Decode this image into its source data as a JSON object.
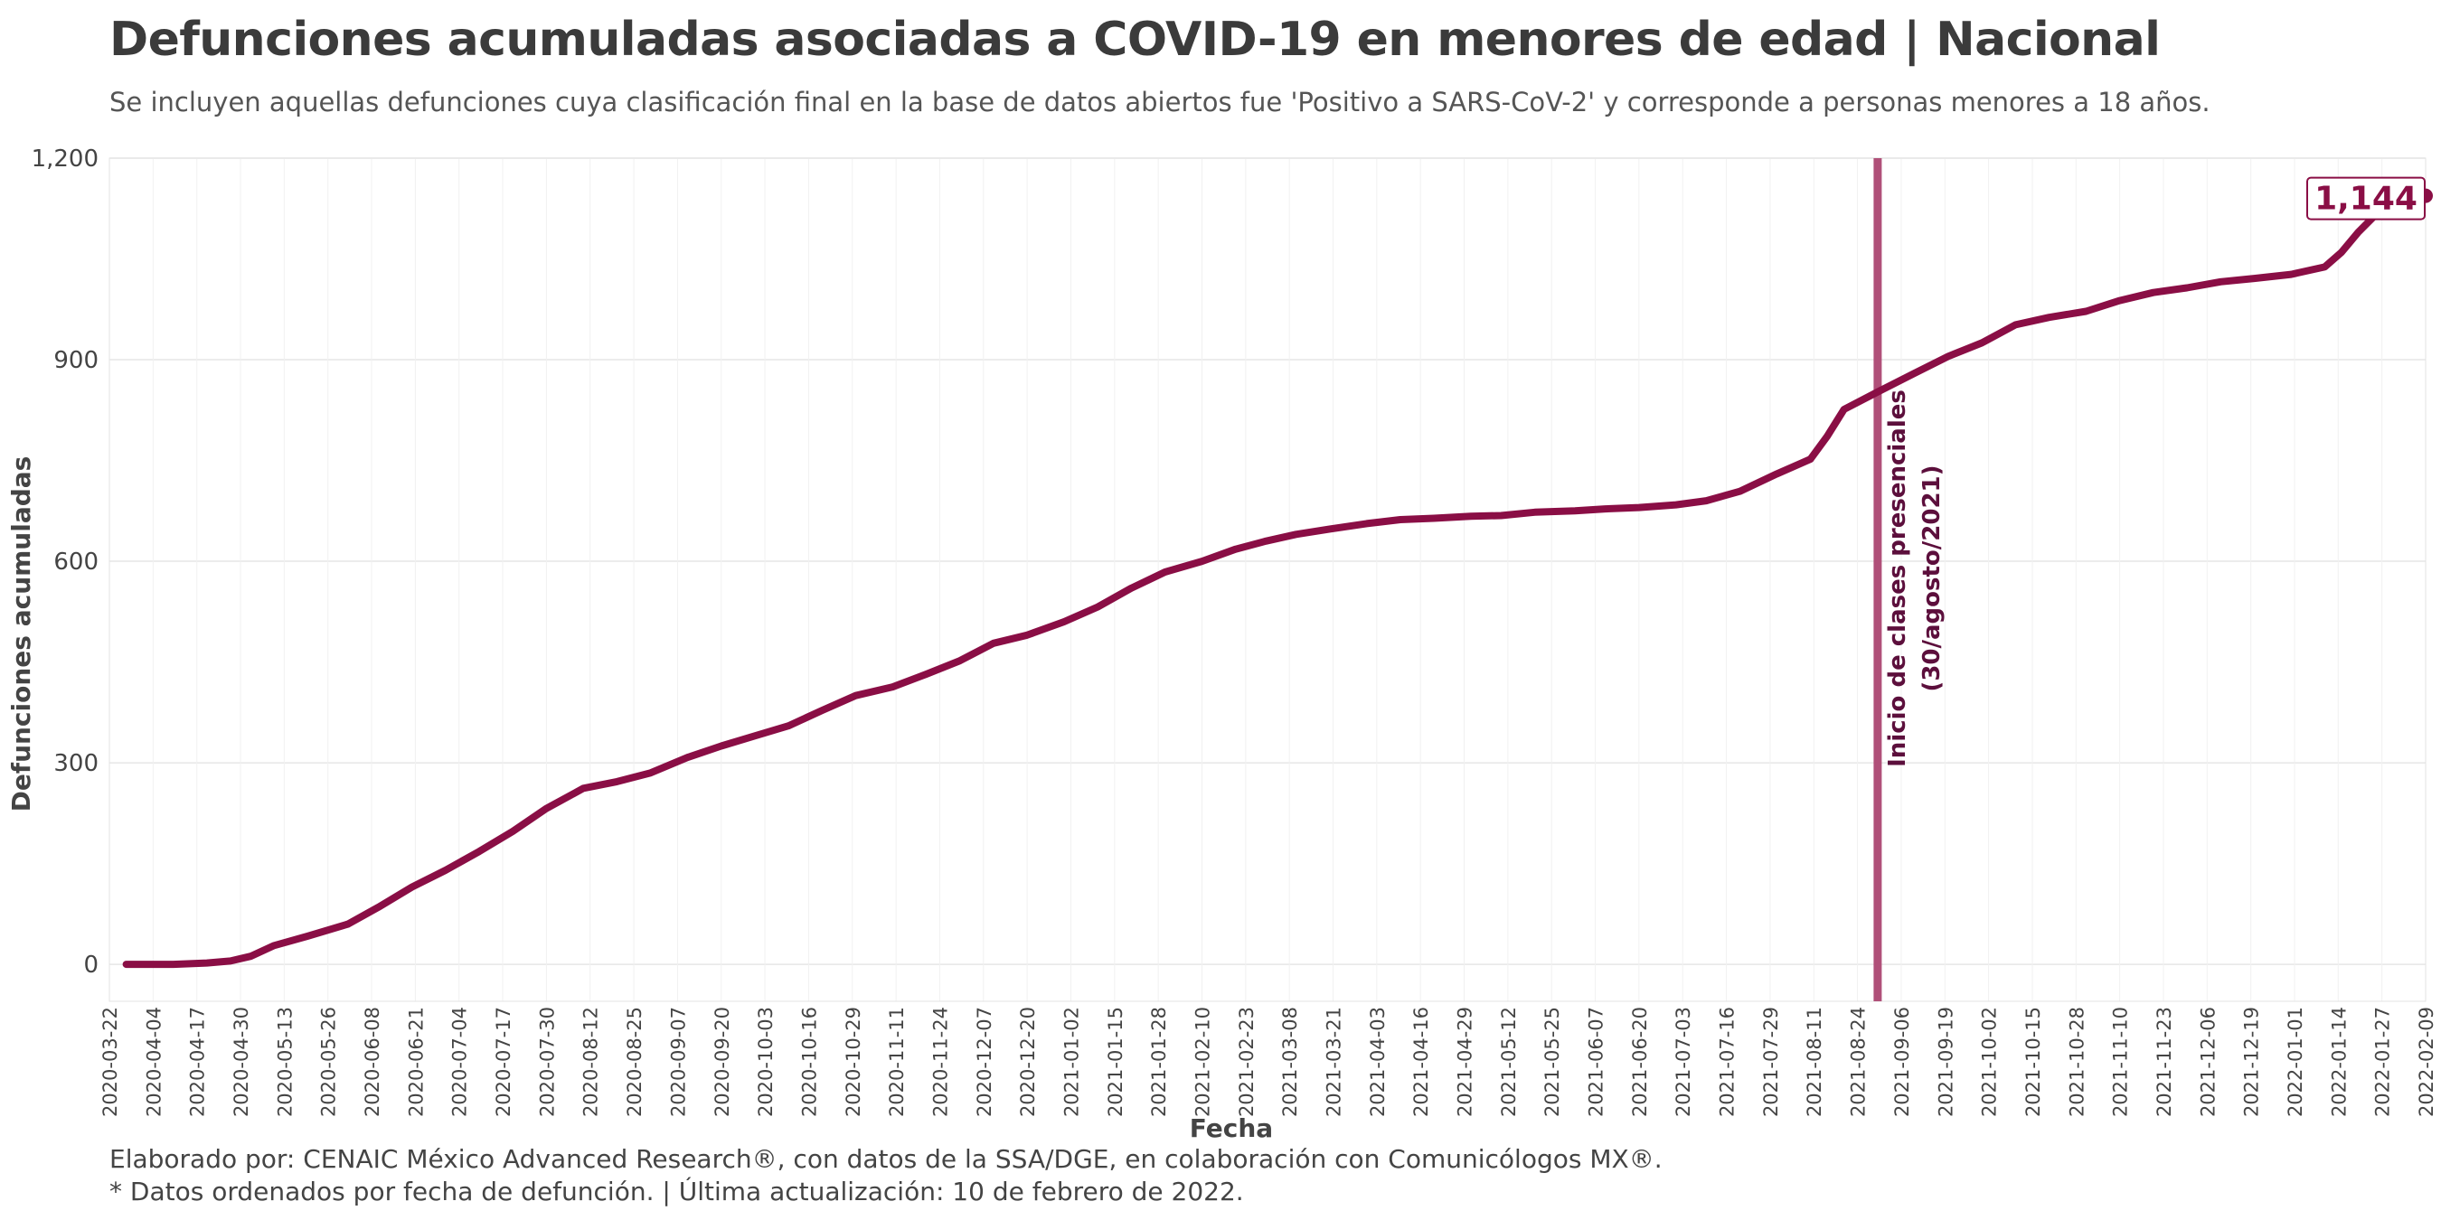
{
  "header": {
    "title": "Defunciones acumuladas asociadas a COVID-19 en menores de edad | Nacional",
    "subtitle": "Se incluyen aquellas defunciones cuya clasificación final en la base de datos abiertos fue 'Positivo a SARS-CoV-2' y corresponde a personas menores a 18 años."
  },
  "footer": {
    "credit": "Elaborado por: CENAIC México Advanced Research®, con datos de la SSA/DGE, en colaboración con Comunicólogos MX®.",
    "note": "* Datos ordenados por fecha de defunción. | Última actualización: 10 de febrero de 2022."
  },
  "colors": {
    "line": "#8a0e45",
    "vline": "#b05079",
    "annotation_text": "#5c0f3c",
    "grid": "#e6e6e6"
  },
  "chart_data": {
    "type": "line",
    "title": "Defunciones acumuladas asociadas a COVID-19 en menores de edad | Nacional",
    "xlabel": "Fecha",
    "ylabel": "Defunciones acumuladas",
    "ylim": [
      -55,
      1200
    ],
    "yticks": [
      0,
      300,
      600,
      900,
      1200
    ],
    "ytick_labels": [
      "0",
      "300",
      "600",
      "900",
      "1,200"
    ],
    "xlim": [
      "2020-03-22",
      "2022-02-09"
    ],
    "xtick_labels": [
      "2020-03-22",
      "2020-04-04",
      "2020-04-17",
      "2020-04-30",
      "2020-05-13",
      "2020-05-26",
      "2020-06-08",
      "2020-06-21",
      "2020-07-04",
      "2020-07-17",
      "2020-07-30",
      "2020-08-12",
      "2020-08-25",
      "2020-09-07",
      "2020-09-20",
      "2020-10-03",
      "2020-10-16",
      "2020-10-29",
      "2020-11-11",
      "2020-11-24",
      "2020-12-07",
      "2020-12-20",
      "2021-01-02",
      "2021-01-15",
      "2021-01-28",
      "2021-02-10",
      "2021-02-23",
      "2021-03-08",
      "2021-03-21",
      "2021-04-03",
      "2021-04-16",
      "2021-04-29",
      "2021-05-12",
      "2021-05-25",
      "2021-06-07",
      "2021-06-20",
      "2021-07-03",
      "2021-07-16",
      "2021-07-29",
      "2021-08-11",
      "2021-08-24",
      "2021-09-06",
      "2021-09-19",
      "2021-10-02",
      "2021-10-15",
      "2021-10-28",
      "2021-11-10",
      "2021-11-23",
      "2021-12-06",
      "2021-12-19",
      "2022-01-01",
      "2022-01-14",
      "2022-01-27",
      "2022-02-09"
    ],
    "grid": true,
    "legend": "none",
    "series": [
      {
        "x": [
          "2020-03-27",
          "2020-04-10",
          "2020-04-20",
          "2020-04-27",
          "2020-05-03",
          "2020-05-10",
          "2020-05-20",
          "2020-06-01",
          "2020-06-10",
          "2020-06-20",
          "2020-06-30",
          "2020-07-10",
          "2020-07-20",
          "2020-07-30",
          "2020-08-10",
          "2020-08-20",
          "2020-08-30",
          "2020-09-10",
          "2020-09-20",
          "2020-09-30",
          "2020-10-10",
          "2020-10-20",
          "2020-10-30",
          "2020-11-10",
          "2020-11-20",
          "2020-11-30",
          "2020-12-10",
          "2020-12-20",
          "2020-12-31",
          "2021-01-10",
          "2021-01-20",
          "2021-01-30",
          "2021-02-10",
          "2021-02-20",
          "2021-03-01",
          "2021-03-10",
          "2021-03-20",
          "2021-03-31",
          "2021-04-10",
          "2021-04-20",
          "2021-05-01",
          "2021-05-10",
          "2021-05-20",
          "2021-06-01",
          "2021-06-10",
          "2021-06-20",
          "2021-07-01",
          "2021-07-10",
          "2021-07-20",
          "2021-07-31",
          "2021-08-10",
          "2021-08-15",
          "2021-08-20",
          "2021-08-30",
          "2021-09-10",
          "2021-09-20",
          "2021-09-30",
          "2021-10-10",
          "2021-10-20",
          "2021-10-31",
          "2021-11-10",
          "2021-11-20",
          "2021-11-30",
          "2021-12-10",
          "2021-12-20",
          "2021-12-31",
          "2022-01-10",
          "2022-01-15",
          "2022-01-20",
          "2022-01-25",
          "2022-01-30",
          "2022-02-09"
        ],
        "y": [
          0,
          0,
          2,
          5,
          12,
          28,
          42,
          60,
          85,
          115,
          140,
          168,
          198,
          232,
          262,
          272,
          285,
          308,
          325,
          340,
          355,
          378,
          400,
          413,
          432,
          452,
          478,
          490,
          510,
          532,
          560,
          584,
          600,
          618,
          630,
          640,
          648,
          656,
          662,
          664,
          667,
          668,
          673,
          675,
          678,
          680,
          684,
          690,
          704,
          730,
          752,
          786,
          826,
          852,
          880,
          905,
          925,
          952,
          963,
          972,
          988,
          1000,
          1007,
          1016,
          1021,
          1027,
          1038,
          1060,
          1090,
          1115,
          1135,
          1144
        ]
      }
    ],
    "annotations": [
      {
        "type": "vline",
        "x": "2021-08-30",
        "text_line1": "Inicio de clases presenciales",
        "text_line2": "(30/agosto/2021)"
      },
      {
        "type": "end_label",
        "x": "2022-02-09",
        "y": 1144,
        "text": "1,144"
      }
    ]
  }
}
